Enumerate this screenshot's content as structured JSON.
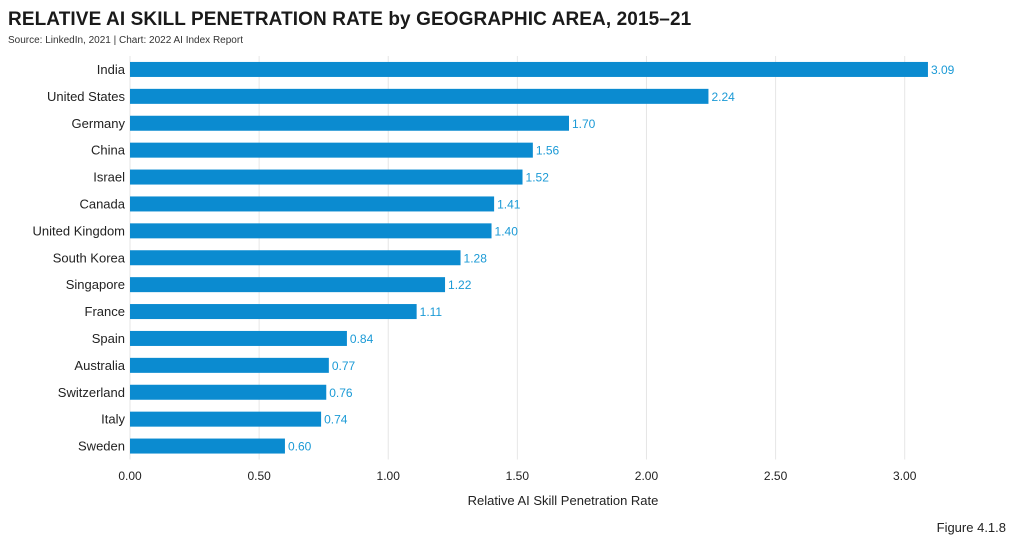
{
  "title": "RELATIVE AI SKILL PENETRATION RATE by GEOGRAPHIC AREA, 2015–21",
  "subtitle": "Source: LinkedIn, 2021 | Chart: 2022 AI Index Report",
  "figure_label": "Figure 4.1.8",
  "colors": {
    "bar": "#0b8bd0",
    "value_label": "#1b9ad6",
    "grid": "#e6e6e6"
  },
  "chart_data": {
    "type": "bar",
    "orientation": "horizontal",
    "categories": [
      "India",
      "United States",
      "Germany",
      "China",
      "Israel",
      "Canada",
      "United Kingdom",
      "South Korea",
      "Singapore",
      "France",
      "Spain",
      "Australia",
      "Switzerland",
      "Italy",
      "Sweden"
    ],
    "values": [
      3.09,
      2.24,
      1.7,
      1.56,
      1.52,
      1.41,
      1.4,
      1.28,
      1.22,
      1.11,
      0.84,
      0.77,
      0.76,
      0.74,
      0.6
    ],
    "value_labels": [
      "3.09",
      "2.24",
      "1.70",
      "1.56",
      "1.52",
      "1.41",
      "1.40",
      "1.28",
      "1.22",
      "1.11",
      "0.84",
      "0.77",
      "0.76",
      "0.74",
      "0.60"
    ],
    "xlabel": "Relative AI Skill Penetration Rate",
    "ylabel": "",
    "xlim": [
      0,
      3.4
    ],
    "xticks": [
      0,
      0.5,
      1,
      1.5,
      2,
      2.5,
      3
    ],
    "xtick_labels": [
      "0.00",
      "0.50",
      "1.00",
      "1.50",
      "2.00",
      "2.50",
      "3.00"
    ],
    "grid": true
  }
}
